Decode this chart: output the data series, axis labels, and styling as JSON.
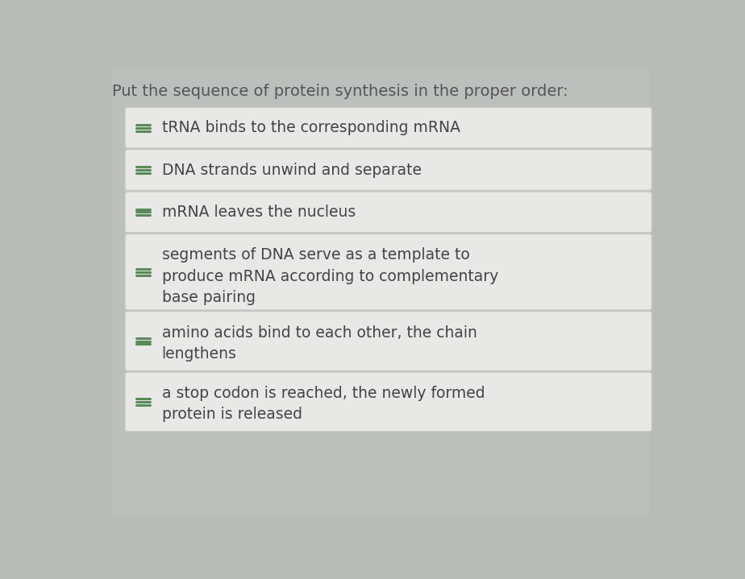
{
  "title": "Put the sequence of protein synthesis in the proper order:",
  "title_fontsize": 14,
  "title_color": "#555555",
  "background_color": "#b8bcb8",
  "box_bg_color": "#e8e8e6",
  "box_border_color": "#c8c8c6",
  "box_text_color": "#444444",
  "handle_color": "#5a8a5a",
  "items": [
    "tRNA binds to the corresponding mRNA",
    "DNA strands unwind and separate",
    "mRNA leaves the nucleus",
    "segments of DNA serve as a template to\nproduce mRNA according to complementary\nbase pairing",
    "amino acids bind to each other, the chain\nlengthens",
    "a stop codon is reached, the newly formed\nprotein is released"
  ],
  "item_fontsize": 13.5,
  "figsize": [
    9.24,
    7.19
  ],
  "dpi": 100
}
